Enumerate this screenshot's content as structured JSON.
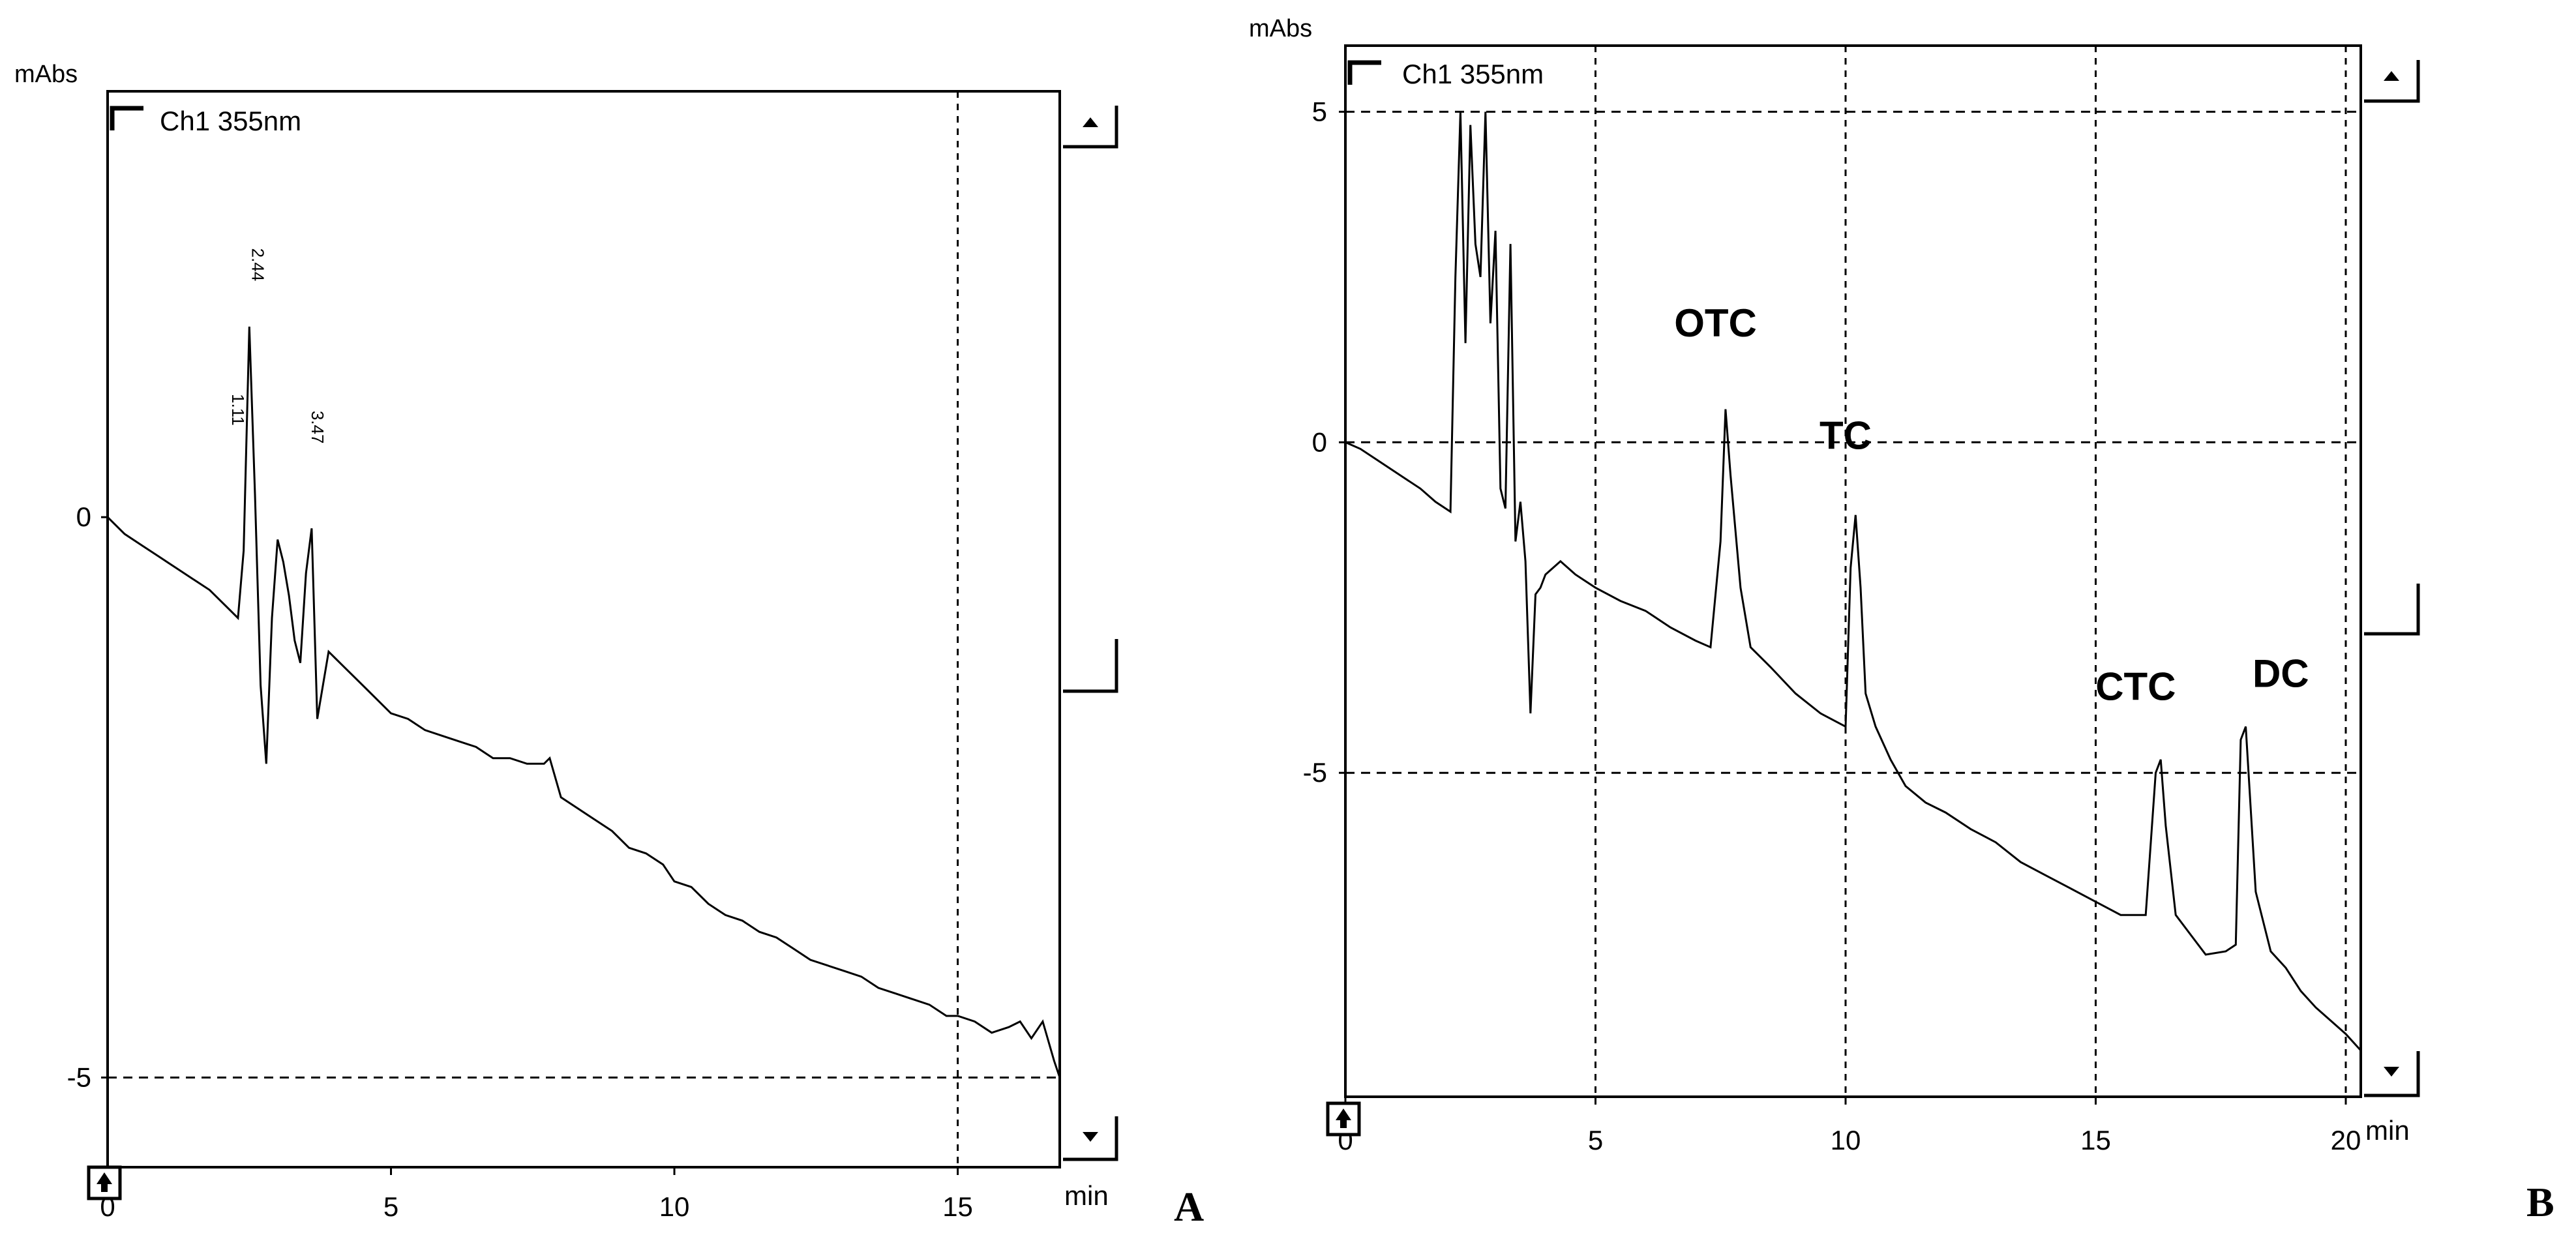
{
  "chart_data": [
    {
      "type": "line",
      "panel_label": "A",
      "channel_label": "Ch1 355nm",
      "ylabel": "mAbs",
      "xlabel": "min",
      "xlim": [
        0,
        16.8
      ],
      "ylim": [
        -5.8,
        3.8
      ],
      "x_ticks": [
        0,
        5,
        10,
        15
      ],
      "x_tick_labels": [
        "0",
        "5",
        "10",
        "15"
      ],
      "y_ticks": [
        0,
        -5
      ],
      "y_tick_labels": [
        "0",
        "-5"
      ],
      "grid_x": [
        15
      ],
      "grid_y": [
        -5
      ],
      "peak_labels": [
        {
          "text": "1.11",
          "x": 2.2,
          "y": 1.1
        },
        {
          "text": "2.44",
          "x": 2.55,
          "y": 2.4
        },
        {
          "text": "3.47",
          "x": 3.6,
          "y": 0.95
        }
      ],
      "series": [
        {
          "x": [
            0.0,
            0.3,
            0.6,
            0.9,
            1.2,
            1.5,
            1.8,
            2.1,
            2.3,
            2.4,
            2.5,
            2.6,
            2.7,
            2.8,
            2.9,
            3.0,
            3.1,
            3.2,
            3.3,
            3.4,
            3.5,
            3.6,
            3.7,
            3.8,
            3.9,
            4.0,
            4.2,
            4.4,
            4.6,
            4.8,
            5.0,
            5.3,
            5.6,
            5.9,
            6.2,
            6.5,
            6.8,
            7.1,
            7.4,
            7.7,
            7.8,
            8.0,
            8.3,
            8.6,
            8.9,
            9.2,
            9.5,
            9.8,
            10.0,
            10.3,
            10.6,
            10.9,
            11.2,
            11.5,
            11.8,
            12.1,
            12.4,
            12.7,
            13.0,
            13.3,
            13.6,
            13.9,
            14.2,
            14.5,
            14.8,
            15.0,
            15.3,
            15.6,
            15.9,
            16.1,
            16.3,
            16.5,
            16.7,
            16.8
          ],
          "y": [
            0.0,
            -0.15,
            -0.25,
            -0.35,
            -0.45,
            -0.55,
            -0.65,
            -0.8,
            -0.9,
            -0.3,
            1.7,
            0.2,
            -1.5,
            -2.2,
            -0.9,
            -0.2,
            -0.4,
            -0.7,
            -1.1,
            -1.3,
            -0.5,
            -0.1,
            -1.8,
            -1.5,
            -1.2,
            -1.25,
            -1.35,
            -1.45,
            -1.55,
            -1.65,
            -1.75,
            -1.8,
            -1.9,
            -1.95,
            -2.0,
            -2.05,
            -2.15,
            -2.15,
            -2.2,
            -2.2,
            -2.15,
            -2.5,
            -2.6,
            -2.7,
            -2.8,
            -2.95,
            -3.0,
            -3.1,
            -3.25,
            -3.3,
            -3.45,
            -3.55,
            -3.6,
            -3.7,
            -3.75,
            -3.85,
            -3.95,
            -4.0,
            -4.05,
            -4.1,
            -4.2,
            -4.25,
            -4.3,
            -4.35,
            -4.45,
            -4.45,
            -4.5,
            -4.6,
            -4.55,
            -4.5,
            -4.65,
            -4.5,
            -4.85,
            -5.0
          ]
        }
      ]
    },
    {
      "type": "line",
      "panel_label": "B",
      "channel_label": "Ch1 355nm",
      "ylabel": "mAbs",
      "xlabel": "min",
      "xlim": [
        0,
        20.3
      ],
      "ylim": [
        -9.9,
        6.0
      ],
      "x_ticks": [
        0,
        5,
        10,
        15,
        20
      ],
      "x_tick_labels": [
        "0",
        "5",
        "10",
        "15",
        "20"
      ],
      "y_ticks": [
        5,
        0,
        -5
      ],
      "y_tick_labels": [
        "5",
        "0",
        "-5"
      ],
      "grid_x": [
        5,
        10,
        15,
        20
      ],
      "grid_y": [
        5,
        0,
        -5
      ],
      "annotations": [
        {
          "text": "OTC",
          "x": 7.4,
          "y": 1.6
        },
        {
          "text": "TC",
          "x": 10.0,
          "y": -0.1
        },
        {
          "text": "CTC",
          "x": 15.8,
          "y": -3.9
        },
        {
          "text": "DC",
          "x": 18.7,
          "y": -3.7
        }
      ],
      "series": [
        {
          "x": [
            0.0,
            0.3,
            0.6,
            0.9,
            1.2,
            1.5,
            1.8,
            2.1,
            2.2,
            2.3,
            2.4,
            2.5,
            2.6,
            2.7,
            2.8,
            2.9,
            3.0,
            3.1,
            3.2,
            3.3,
            3.4,
            3.5,
            3.6,
            3.7,
            3.8,
            3.9,
            4.0,
            4.3,
            4.6,
            5.0,
            5.5,
            6.0,
            6.5,
            7.0,
            7.3,
            7.5,
            7.6,
            7.7,
            7.9,
            8.1,
            8.5,
            9.0,
            9.5,
            10.0,
            10.1,
            10.2,
            10.3,
            10.4,
            10.6,
            10.9,
            11.2,
            11.6,
            12.0,
            12.5,
            13.0,
            13.5,
            14.0,
            14.5,
            15.0,
            15.5,
            16.0,
            16.2,
            16.3,
            16.4,
            16.6,
            16.9,
            17.2,
            17.6,
            17.8,
            17.9,
            18.0,
            18.2,
            18.5,
            18.8,
            19.1,
            19.4,
            19.7,
            20.0,
            20.3
          ],
          "y": [
            0.0,
            -0.1,
            -0.25,
            -0.4,
            -0.55,
            -0.7,
            -0.9,
            -1.05,
            2.5,
            5.0,
            1.5,
            4.8,
            3.0,
            2.5,
            5.0,
            1.8,
            3.2,
            -0.7,
            -1.0,
            3.0,
            -1.5,
            -0.9,
            -1.8,
            -4.1,
            -2.3,
            -2.2,
            -2.0,
            -1.8,
            -2.0,
            -2.2,
            -2.4,
            -2.55,
            -2.8,
            -3.0,
            -3.1,
            -1.5,
            0.5,
            -0.5,
            -2.2,
            -3.1,
            -3.4,
            -3.8,
            -4.1,
            -4.3,
            -1.9,
            -1.1,
            -2.2,
            -3.8,
            -4.3,
            -4.8,
            -5.2,
            -5.45,
            -5.6,
            -5.85,
            -6.05,
            -6.35,
            -6.55,
            -6.75,
            -6.95,
            -7.15,
            -7.15,
            -5.0,
            -4.8,
            -5.8,
            -7.15,
            -7.45,
            -7.75,
            -7.7,
            -7.6,
            -4.5,
            -4.3,
            -6.8,
            -7.7,
            -7.95,
            -8.3,
            -8.55,
            -8.75,
            -8.95,
            -9.2
          ]
        }
      ]
    }
  ]
}
